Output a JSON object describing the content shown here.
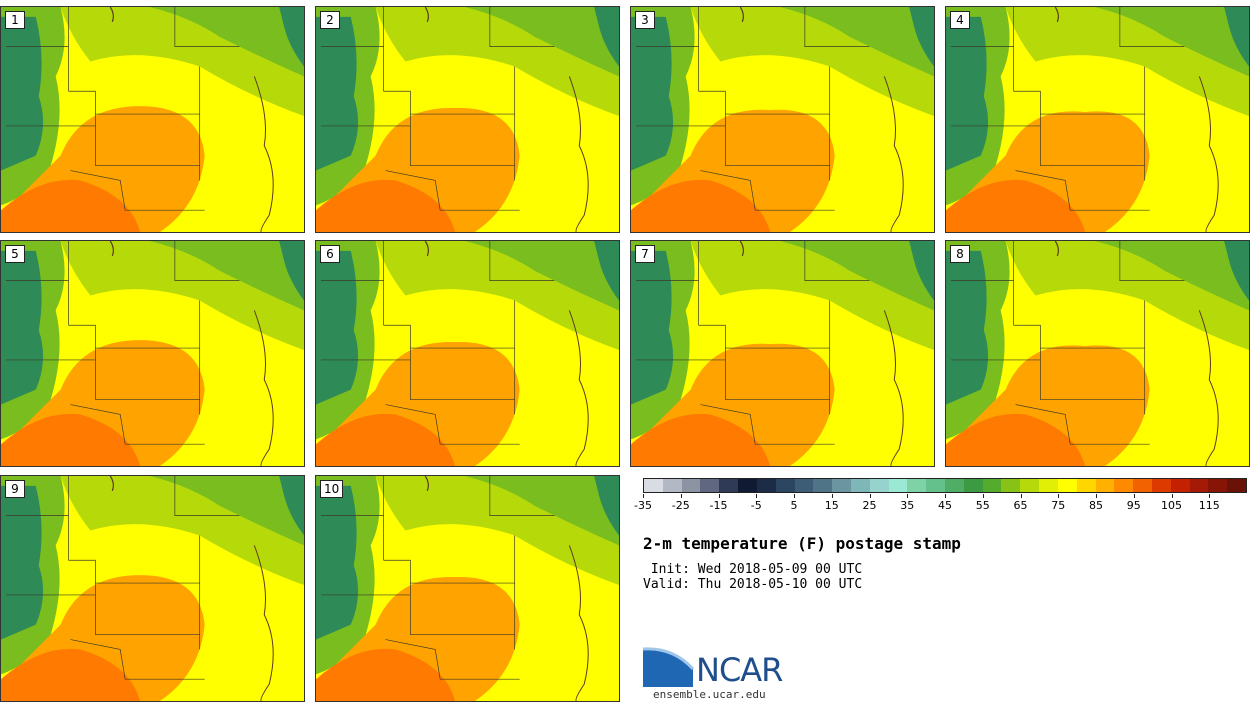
{
  "panels": [
    {
      "label": "1"
    },
    {
      "label": "2"
    },
    {
      "label": "3"
    },
    {
      "label": "4"
    },
    {
      "label": "5"
    },
    {
      "label": "6"
    },
    {
      "label": "7"
    },
    {
      "label": "8"
    },
    {
      "label": "9"
    },
    {
      "label": "10"
    }
  ],
  "colorbar": {
    "colors": [
      "#d9dde3",
      "#b3b9c4",
      "#8c93a3",
      "#5f6880",
      "#2e3a56",
      "#101a33",
      "#1c2c47",
      "#2c4560",
      "#3d5c75",
      "#4f7487",
      "#6a95a1",
      "#7fb6b8",
      "#95d3cc",
      "#9be8d4",
      "#7ed2a6",
      "#65c18b",
      "#50ad65",
      "#3c9a43",
      "#55ab2c",
      "#88c217",
      "#b5d90b",
      "#e1ee05",
      "#ffff00",
      "#ffd600",
      "#ffb000",
      "#ff8a00",
      "#f26200",
      "#dd3a00",
      "#c42100",
      "#a51a06",
      "#861508",
      "#6b1208"
    ],
    "tick_labels": [
      "-35",
      "-25",
      "-15",
      "-5",
      "5",
      "15",
      "25",
      "35",
      "45",
      "55",
      "65",
      "75",
      "85",
      "95",
      "105",
      "115"
    ]
  },
  "title": "2-m temperature (F) postage stamp",
  "init": " Init: Wed 2018-05-09 00 UTC",
  "valid": "Valid: Thu 2018-05-10 00 UTC",
  "logo": {
    "text": "NCAR",
    "url": "ensemble.ucar.edu",
    "color": "#1f4e8c"
  },
  "map_colors": {
    "cold": "#2e8b57",
    "cool": "#79bd1f",
    "mild": "#b6d90a",
    "warm": "#ffff00",
    "hot": "#ffa300",
    "hotter": "#ff7a00"
  }
}
